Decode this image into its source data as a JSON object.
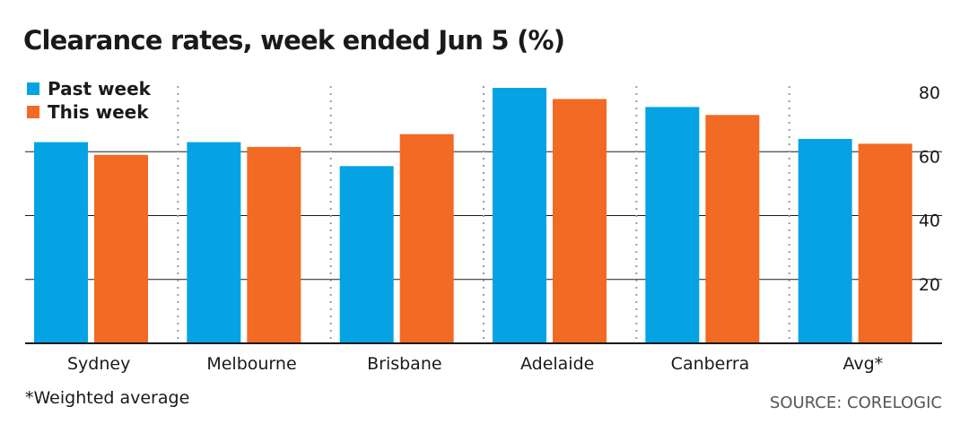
{
  "header": {
    "title": "Clearance rates, week ended Jun 5 (%)"
  },
  "footer": {
    "footnote": "*Weighted average",
    "source": "SOURCE: CORELOGIC"
  },
  "colors": {
    "past_week": "#06a3e4",
    "this_week": "#f26a23",
    "gridline": "#1a1a1a",
    "separator": "#9a9a9a",
    "text": "#1a1a1a"
  },
  "chart_data": {
    "type": "bar",
    "title": "Clearance rates, week ended Jun 5 (%)",
    "categories": [
      "Sydney",
      "Melbourne",
      "Brisbane",
      "Adelaide",
      "Canberra",
      "Avg*"
    ],
    "series": [
      {
        "name": "Past week",
        "values": [
          63,
          63,
          55.5,
          80,
          74,
          64
        ]
      },
      {
        "name": "This week",
        "values": [
          59,
          61.5,
          65.5,
          76.5,
          71.5,
          62.5
        ]
      }
    ],
    "yticks": [
      20,
      40,
      60,
      80
    ],
    "ylim": [
      0,
      80
    ],
    "grid": true,
    "legend_position": "top-left",
    "y_axis_side": "right"
  }
}
